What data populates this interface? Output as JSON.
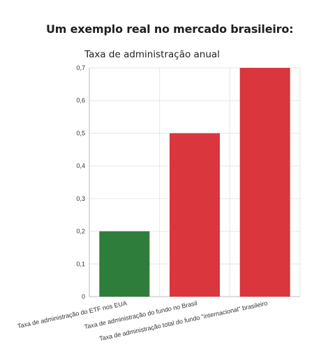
{
  "page": {
    "heading": "Um exemplo real no mercado brasileiro:"
  },
  "chart_data": {
    "type": "bar",
    "title": "Taxa de administração anual",
    "xlabel": "",
    "ylabel": "",
    "categories": [
      "Taxa de administração do ETF nos EUA",
      "Taxa de administração do fundo no Brasil",
      "Taxa de administração total do fundo \"internacional\" brasileiro"
    ],
    "values": [
      0.2,
      0.5,
      0.7
    ],
    "ylim": [
      0,
      0.7
    ],
    "yticks": [
      "0",
      "0,1",
      "0,2",
      "0,3",
      "0,4",
      "0,5",
      "0,6",
      "0,7"
    ],
    "bar_colors": [
      "#2e7d3a",
      "#d9363e",
      "#d9363e"
    ],
    "grid": true,
    "legend": "none"
  }
}
